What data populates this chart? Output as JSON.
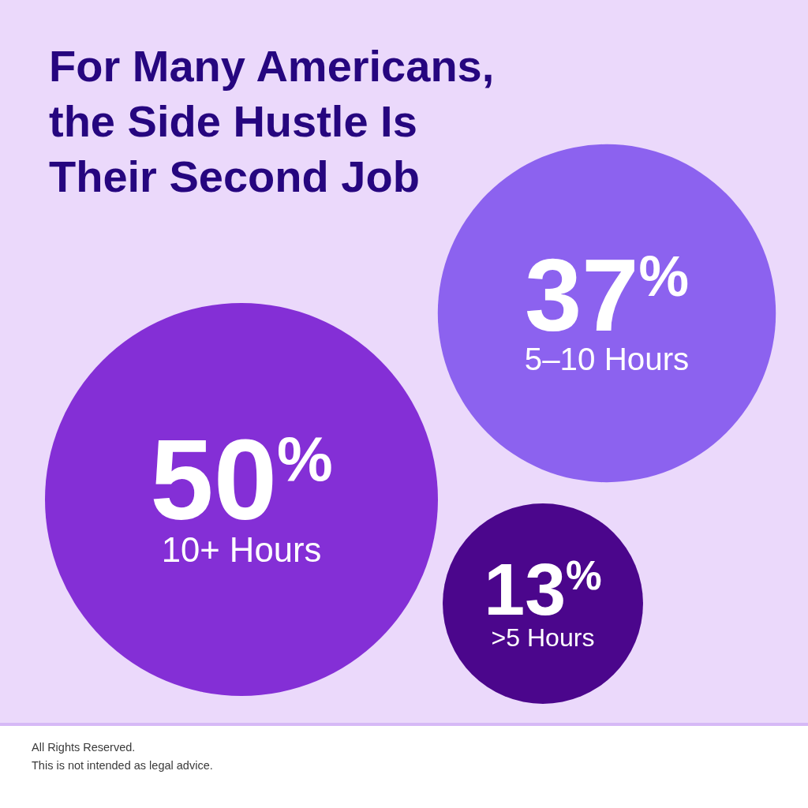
{
  "chart_data": {
    "type": "other",
    "title": "For Many Americans, the Side Hustle Is Their Second Job",
    "categories": [
      "10+ Hours",
      "5–10 Hours",
      ">5 Hours"
    ],
    "values": [
      50,
      37,
      13
    ],
    "colors": [
      "#842fd6",
      "#8c62ef",
      "#4b068c"
    ],
    "value_labels": [
      "50$^{%}$",
      "37$^{%}$",
      "13$^{%}$"
    ],
    "annotations": [
      "All Rights Reserved.",
      "This is not intended as legal advice."
    ]
  }
}
